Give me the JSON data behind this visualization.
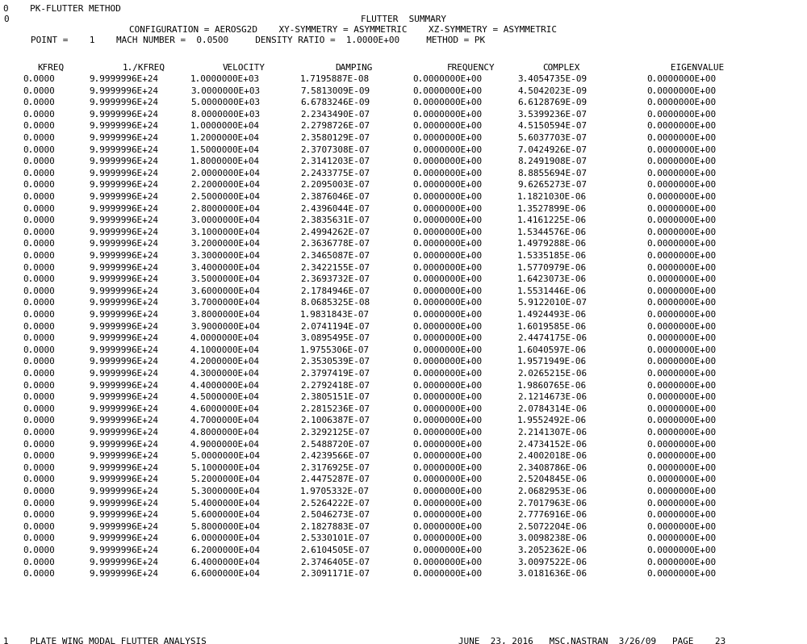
{
  "line0": "0    PK-FLUTTER METHOD",
  "line1": "0",
  "title": "FLUTTER  SUMMARY",
  "config_line1": "               CONFIGURATION = AEROSG2D    XY-SYMMETRY = ASYMMETRIC    XZ-SYMMETRY = ASYMMETRIC",
  "point_line": "    POINT =    1    MACH NUMBER =  0.0500     DENSITY RATIO =  1.0000E+00     METHOD = PK",
  "header_cols": [
    "KFREQ",
    "1./KFREQ",
    "VELOCITY",
    "DAMPING",
    "FREQUENCY",
    "COMPLEX",
    "EIGENVALUE"
  ],
  "data_rows": [
    [
      "0.0000",
      "9.9999996E+24",
      "1.0000000E+03",
      "1.7195887E-08",
      "0.0000000E+00",
      "3.4054735E-09",
      "0.0000000E+00"
    ],
    [
      "0.0000",
      "9.9999996E+24",
      "3.0000000E+03",
      "7.5813009E-09",
      "0.0000000E+00",
      "4.5042023E-09",
      "0.0000000E+00"
    ],
    [
      "0.0000",
      "9.9999996E+24",
      "5.0000000E+03",
      "6.6783246E-09",
      "0.0000000E+00",
      "6.6128769E-09",
      "0.0000000E+00"
    ],
    [
      "0.0000",
      "9.9999996E+24",
      "8.0000000E+03",
      "2.2343490E-07",
      "0.0000000E+00",
      "3.5399236E-07",
      "0.0000000E+00"
    ],
    [
      "0.0000",
      "9.9999996E+24",
      "1.0000000E+04",
      "2.2798726E-07",
      "0.0000000E+00",
      "4.5150594E-07",
      "0.0000000E+00"
    ],
    [
      "0.0000",
      "9.9999996E+24",
      "1.2000000E+04",
      "2.3580129E-07",
      "0.0000000E+00",
      "5.6037703E-07",
      "0.0000000E+00"
    ],
    [
      "0.0000",
      "9.9999996E+24",
      "1.5000000E+04",
      "2.3707308E-07",
      "0.0000000E+00",
      "7.0424926E-07",
      "0.0000000E+00"
    ],
    [
      "0.0000",
      "9.9999996E+24",
      "1.8000000E+04",
      "2.3141203E-07",
      "0.0000000E+00",
      "8.2491908E-07",
      "0.0000000E+00"
    ],
    [
      "0.0000",
      "9.9999996E+24",
      "2.0000000E+04",
      "2.2433775E-07",
      "0.0000000E+00",
      "8.8855694E-07",
      "0.0000000E+00"
    ],
    [
      "0.0000",
      "9.9999996E+24",
      "2.2000000E+04",
      "2.2095003E-07",
      "0.0000000E+00",
      "9.6265273E-07",
      "0.0000000E+00"
    ],
    [
      "0.0000",
      "9.9999996E+24",
      "2.5000000E+04",
      "2.3876046E-07",
      "0.0000000E+00",
      "1.1821030E-06",
      "0.0000000E+00"
    ],
    [
      "0.0000",
      "9.9999996E+24",
      "2.8000000E+04",
      "2.4396044E-07",
      "0.0000000E+00",
      "1.3527899E-06",
      "0.0000000E+00"
    ],
    [
      "0.0000",
      "9.9999996E+24",
      "3.0000000E+04",
      "2.3835631E-07",
      "0.0000000E+00",
      "1.4161225E-06",
      "0.0000000E+00"
    ],
    [
      "0.0000",
      "9.9999996E+24",
      "3.1000000E+04",
      "2.4994262E-07",
      "0.0000000E+00",
      "1.5344576E-06",
      "0.0000000E+00"
    ],
    [
      "0.0000",
      "9.9999996E+24",
      "3.2000000E+04",
      "2.3636778E-07",
      "0.0000000E+00",
      "1.4979288E-06",
      "0.0000000E+00"
    ],
    [
      "0.0000",
      "9.9999996E+24",
      "3.3000000E+04",
      "2.3465087E-07",
      "0.0000000E+00",
      "1.5335185E-06",
      "0.0000000E+00"
    ],
    [
      "0.0000",
      "9.9999996E+24",
      "3.4000000E+04",
      "2.3422155E-07",
      "0.0000000E+00",
      "1.5770979E-06",
      "0.0000000E+00"
    ],
    [
      "0.0000",
      "9.9999996E+24",
      "3.5000000E+04",
      "2.3693732E-07",
      "0.0000000E+00",
      "1.6423073E-06",
      "0.0000000E+00"
    ],
    [
      "0.0000",
      "9.9999996E+24",
      "3.6000000E+04",
      "2.1784946E-07",
      "0.0000000E+00",
      "1.5531446E-06",
      "0.0000000E+00"
    ],
    [
      "0.0000",
      "9.9999996E+24",
      "3.7000000E+04",
      "8.0685325E-08",
      "0.0000000E+00",
      "5.9122010E-07",
      "0.0000000E+00"
    ],
    [
      "0.0000",
      "9.9999996E+24",
      "3.8000000E+04",
      "1.9831843E-07",
      "0.0000000E+00",
      "1.4924493E-06",
      "0.0000000E+00"
    ],
    [
      "0.0000",
      "9.9999996E+24",
      "3.9000000E+04",
      "2.0741194E-07",
      "0.0000000E+00",
      "1.6019585E-06",
      "0.0000000E+00"
    ],
    [
      "0.0000",
      "9.9999996E+24",
      "4.0000000E+04",
      "3.0895495E-07",
      "0.0000000E+00",
      "2.4474175E-06",
      "0.0000000E+00"
    ],
    [
      "0.0000",
      "9.9999996E+24",
      "4.1000000E+04",
      "1.9755306E-07",
      "0.0000000E+00",
      "1.6040597E-06",
      "0.0000000E+00"
    ],
    [
      "0.0000",
      "9.9999996E+24",
      "4.2000000E+04",
      "2.3530539E-07",
      "0.0000000E+00",
      "1.9571949E-06",
      "0.0000000E+00"
    ],
    [
      "0.0000",
      "9.9999996E+24",
      "4.3000000E+04",
      "2.3797419E-07",
      "0.0000000E+00",
      "2.0265215E-06",
      "0.0000000E+00"
    ],
    [
      "0.0000",
      "9.9999996E+24",
      "4.4000000E+04",
      "2.2792418E-07",
      "0.0000000E+00",
      "1.9860765E-06",
      "0.0000000E+00"
    ],
    [
      "0.0000",
      "9.9999996E+24",
      "4.5000000E+04",
      "2.3805151E-07",
      "0.0000000E+00",
      "2.1214673E-06",
      "0.0000000E+00"
    ],
    [
      "0.0000",
      "9.9999996E+24",
      "4.6000000E+04",
      "2.2815236E-07",
      "0.0000000E+00",
      "2.0784314E-06",
      "0.0000000E+00"
    ],
    [
      "0.0000",
      "9.9999996E+24",
      "4.7000000E+04",
      "2.1006387E-07",
      "0.0000000E+00",
      "1.9552492E-06",
      "0.0000000E+00"
    ],
    [
      "0.0000",
      "9.9999996E+24",
      "4.8000000E+04",
      "2.3292125E-07",
      "0.0000000E+00",
      "2.2141307E-06",
      "0.0000000E+00"
    ],
    [
      "0.0000",
      "9.9999996E+24",
      "4.9000000E+04",
      "2.5488720E-07",
      "0.0000000E+00",
      "2.4734152E-06",
      "0.0000000E+00"
    ],
    [
      "0.0000",
      "9.9999996E+24",
      "5.0000000E+04",
      "2.4239566E-07",
      "0.0000000E+00",
      "2.4002018E-06",
      "0.0000000E+00"
    ],
    [
      "0.0000",
      "9.9999996E+24",
      "5.1000000E+04",
      "2.3176925E-07",
      "0.0000000E+00",
      "2.3408786E-06",
      "0.0000000E+00"
    ],
    [
      "0.0000",
      "9.9999996E+24",
      "5.2000000E+04",
      "2.4475287E-07",
      "0.0000000E+00",
      "2.5204845E-06",
      "0.0000000E+00"
    ],
    [
      "0.0000",
      "9.9999996E+24",
      "5.3000000E+04",
      "1.9705332E-07",
      "0.0000000E+00",
      "2.0682953E-06",
      "0.0000000E+00"
    ],
    [
      "0.0000",
      "9.9999996E+24",
      "5.4000000E+04",
      "2.5264222E-07",
      "0.0000000E+00",
      "2.7017963E-06",
      "0.0000000E+00"
    ],
    [
      "0.0000",
      "9.9999996E+24",
      "5.6000000E+04",
      "2.5046273E-07",
      "0.0000000E+00",
      "2.7776916E-06",
      "0.0000000E+00"
    ],
    [
      "0.0000",
      "9.9999996E+24",
      "5.8000000E+04",
      "2.1827883E-07",
      "0.0000000E+00",
      "2.5072204E-06",
      "0.0000000E+00"
    ],
    [
      "0.0000",
      "9.9999996E+24",
      "6.0000000E+04",
      "2.5330101E-07",
      "0.0000000E+00",
      "3.0098238E-06",
      "0.0000000E+00"
    ],
    [
      "0.0000",
      "9.9999996E+24",
      "6.2000000E+04",
      "2.6104505E-07",
      "0.0000000E+00",
      "3.2052362E-06",
      "0.0000000E+00"
    ],
    [
      "0.0000",
      "9.9999996E+24",
      "6.4000000E+04",
      "2.3746405E-07",
      "0.0000000E+00",
      "3.0097522E-06",
      "0.0000000E+00"
    ],
    [
      "0.0000",
      "9.9999996E+24",
      "6.6000000E+04",
      "2.3091171E-07",
      "0.0000000E+00",
      "3.0181636E-06",
      "0.0000000E+00"
    ]
  ],
  "footer_left": "1    PLATE WING MODAL FLUTTER ANALYSIS",
  "footer_right": "JUNE  23, 2016   MSC.NASTRAN  3/26/09   PAGE    23",
  "bg_color": "#ffffff",
  "text_color": "#000000",
  "font_size": 7.9
}
